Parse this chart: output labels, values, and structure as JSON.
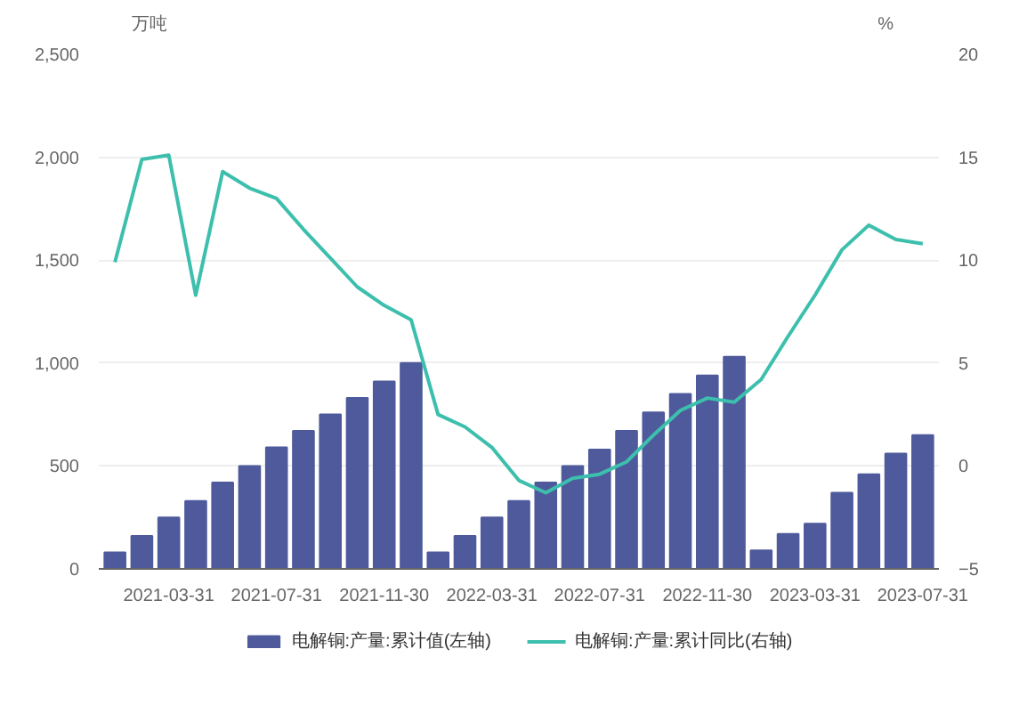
{
  "chart_data": {
    "type": "bar",
    "ylabel": "万吨",
    "y2label": "%",
    "categories": [
      null,
      null,
      "2021-03-31",
      null,
      null,
      null,
      "2021-07-31",
      null,
      null,
      null,
      "2021-11-30",
      null,
      null,
      null,
      "2022-03-31",
      null,
      null,
      null,
      "2022-07-31",
      null,
      null,
      null,
      "2022-11-30",
      null,
      null,
      null,
      "2023-03-31",
      null,
      null,
      null,
      "2023-07-31"
    ],
    "series": [
      {
        "name": "电解铜:产量:累计值(左轴)",
        "color": "#4e5a9b",
        "values": [
          80,
          160,
          250,
          330,
          420,
          500,
          590,
          670,
          750,
          830,
          910,
          1000,
          80,
          160,
          250,
          330,
          420,
          500,
          580,
          670,
          760,
          850,
          940,
          1030,
          90,
          170,
          220,
          370,
          460,
          560,
          650
        ]
      },
      {
        "name": "电解铜:产量:累计同比(右轴)",
        "type": "line",
        "axis": "y2",
        "color": "#3dbfad",
        "values": [
          9.9,
          14.9,
          15.1,
          8.3,
          14.3,
          13.5,
          13.0,
          11.5,
          10.1,
          8.7,
          7.8,
          7.1,
          2.5,
          1.9,
          0.9,
          -0.7,
          -1.3,
          -0.6,
          -0.4,
          0.2,
          1.5,
          2.7,
          3.3,
          3.1,
          4.2,
          6.3,
          8.3,
          10.5,
          11.7,
          11.0,
          10.8
        ]
      }
    ],
    "ylim": [
      0,
      2500
    ],
    "yticks": [
      0,
      {
        "value": 500,
        "label": "500"
      },
      {
        "value": 1000,
        "label": "1,000"
      },
      {
        "value": 1500,
        "label": "1,500"
      },
      {
        "value": 2000,
        "label": "2,000"
      },
      {
        "value": 2500,
        "label": "2,500"
      }
    ],
    "y2lim": [
      -5,
      20
    ],
    "y2ticks": [
      -5,
      0,
      5,
      10,
      15,
      20
    ],
    "grid": "y",
    "legend": "bottom",
    "marker": "none",
    "line_style": "solid"
  }
}
